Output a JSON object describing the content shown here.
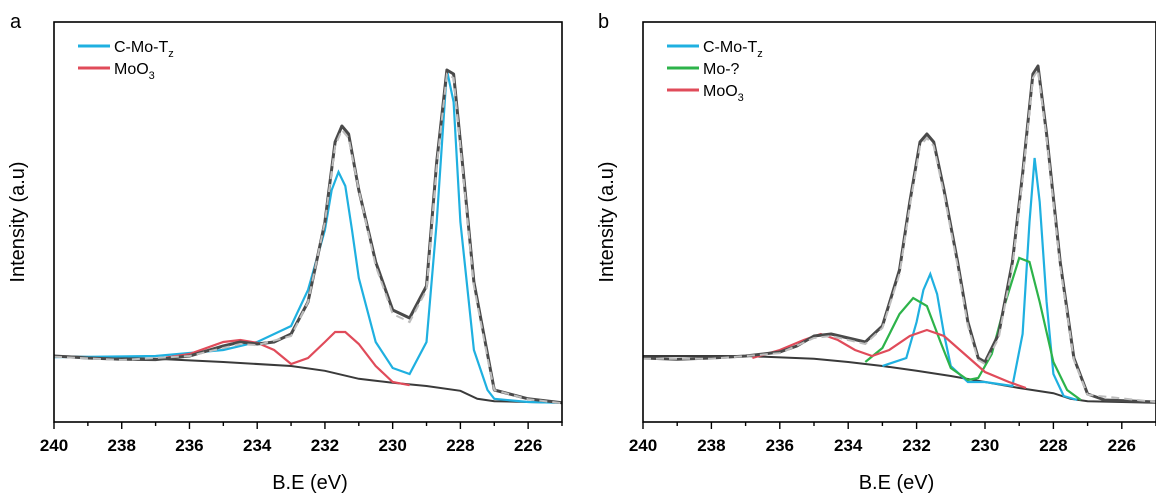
{
  "chart_data": [
    {
      "panel": "a",
      "type": "line",
      "xlabel": "B.E (eV)",
      "ylabel": "Intensity (a.u)",
      "xlim": [
        240,
        225
      ],
      "ylim": [
        0,
        1.0
      ],
      "x_reversed": true,
      "xticks": [
        240,
        238,
        236,
        234,
        232,
        230,
        228,
        226
      ],
      "grid": false,
      "legend": {
        "placement": "top-left",
        "entries": [
          {
            "label": "C-Mo-T",
            "sub": "z",
            "color": "#1fb0e0"
          },
          {
            "label": "MoO",
            "sub": "3",
            "color": "#e04b5a"
          }
        ]
      },
      "measured": {
        "color": "#4a4a4a",
        "points": [
          [
            240,
            0.165
          ],
          [
            239,
            0.16
          ],
          [
            238,
            0.157
          ],
          [
            237,
            0.156
          ],
          [
            236,
            0.165
          ],
          [
            235,
            0.19
          ],
          [
            234.5,
            0.2
          ],
          [
            234,
            0.195
          ],
          [
            233.5,
            0.2
          ],
          [
            233,
            0.22
          ],
          [
            232.5,
            0.3
          ],
          [
            232,
            0.5
          ],
          [
            231.7,
            0.7
          ],
          [
            231.5,
            0.74
          ],
          [
            231.3,
            0.72
          ],
          [
            231,
            0.58
          ],
          [
            230.5,
            0.4
          ],
          [
            230,
            0.28
          ],
          [
            229.5,
            0.26
          ],
          [
            229,
            0.34
          ],
          [
            228.7,
            0.65
          ],
          [
            228.4,
            0.88
          ],
          [
            228.2,
            0.87
          ],
          [
            228,
            0.7
          ],
          [
            227.6,
            0.35
          ],
          [
            227.2,
            0.17
          ],
          [
            227,
            0.08
          ],
          [
            226,
            0.058
          ],
          [
            225,
            0.048
          ]
        ]
      },
      "envelope": {
        "color": "#bdbdbd",
        "points": [
          [
            240,
            0.163
          ],
          [
            238,
            0.155
          ],
          [
            236,
            0.165
          ],
          [
            235,
            0.185
          ],
          [
            234.5,
            0.195
          ],
          [
            234,
            0.192
          ],
          [
            233,
            0.215
          ],
          [
            232.5,
            0.3
          ],
          [
            232,
            0.5
          ],
          [
            231.7,
            0.69
          ],
          [
            231.5,
            0.73
          ],
          [
            231.3,
            0.71
          ],
          [
            231,
            0.58
          ],
          [
            230.5,
            0.39
          ],
          [
            230,
            0.27
          ],
          [
            229.5,
            0.25
          ],
          [
            229,
            0.33
          ],
          [
            228.7,
            0.64
          ],
          [
            228.4,
            0.87
          ],
          [
            228.2,
            0.86
          ],
          [
            228,
            0.69
          ],
          [
            227.6,
            0.34
          ],
          [
            227.2,
            0.16
          ],
          [
            227,
            0.08
          ],
          [
            226,
            0.057
          ],
          [
            225,
            0.047
          ]
        ]
      },
      "background": {
        "color": "#3a3a3a",
        "points": [
          [
            240,
            0.165
          ],
          [
            237,
            0.158
          ],
          [
            235,
            0.15
          ],
          [
            233,
            0.14
          ],
          [
            232,
            0.128
          ],
          [
            231,
            0.108
          ],
          [
            230,
            0.098
          ],
          [
            229,
            0.09
          ],
          [
            228,
            0.078
          ],
          [
            227.5,
            0.058
          ],
          [
            227,
            0.052
          ],
          [
            226,
            0.05
          ],
          [
            225,
            0.048
          ]
        ]
      },
      "components": [
        {
          "name": "C-Mo-T",
          "color": "#1fb0e0",
          "points": [
            [
              240,
              0.162
            ],
            [
              237,
              0.165
            ],
            [
              235,
              0.18
            ],
            [
              234,
              0.2
            ],
            [
              233,
              0.24
            ],
            [
              232.5,
              0.33
            ],
            [
              232,
              0.48
            ],
            [
              231.8,
              0.58
            ],
            [
              231.6,
              0.625
            ],
            [
              231.4,
              0.59
            ],
            [
              231.2,
              0.48
            ],
            [
              231,
              0.36
            ],
            [
              230.5,
              0.2
            ],
            [
              230,
              0.135
            ],
            [
              229.5,
              0.12
            ],
            [
              229,
              0.2
            ],
            [
              228.7,
              0.5
            ],
            [
              228.4,
              0.88
            ],
            [
              228.2,
              0.8
            ],
            [
              228,
              0.5
            ],
            [
              227.6,
              0.18
            ],
            [
              227.2,
              0.08
            ],
            [
              227,
              0.058
            ],
            [
              226,
              0.05
            ],
            [
              225,
              0.048
            ]
          ]
        },
        {
          "name": "MoO",
          "color": "#e04b5a",
          "points": [
            [
              237,
              0.157
            ],
            [
              236,
              0.17
            ],
            [
              235,
              0.2
            ],
            [
              234.5,
              0.205
            ],
            [
              234,
              0.198
            ],
            [
              233.5,
              0.18
            ],
            [
              233,
              0.145
            ],
            [
              232.5,
              0.16
            ],
            [
              232,
              0.2
            ],
            [
              231.7,
              0.225
            ],
            [
              231.4,
              0.225
            ],
            [
              231,
              0.195
            ],
            [
              230.5,
              0.14
            ],
            [
              230,
              0.1
            ],
            [
              229.5,
              0.092
            ]
          ]
        }
      ]
    },
    {
      "panel": "b",
      "type": "line",
      "xlabel": "B.E (eV)",
      "ylabel": "Intensity (a.u)",
      "xlim": [
        240,
        225
      ],
      "ylim": [
        0,
        1.0
      ],
      "x_reversed": true,
      "xticks": [
        240,
        238,
        236,
        234,
        232,
        230,
        228,
        226
      ],
      "grid": false,
      "legend": {
        "placement": "top-left",
        "entries": [
          {
            "label": "C-Mo-T",
            "sub": "z",
            "color": "#1fb0e0"
          },
          {
            "label": "Mo-?",
            "sub": "",
            "color": "#2db34a"
          },
          {
            "label": "MoO",
            "sub": "3",
            "color": "#e04b5a"
          }
        ]
      },
      "measured": {
        "color": "#4a4a4a",
        "points": [
          [
            240,
            0.16
          ],
          [
            239,
            0.157
          ],
          [
            238,
            0.16
          ],
          [
            237,
            0.165
          ],
          [
            236,
            0.175
          ],
          [
            235.5,
            0.19
          ],
          [
            235,
            0.215
          ],
          [
            234.5,
            0.22
          ],
          [
            234,
            0.21
          ],
          [
            233.5,
            0.2
          ],
          [
            233,
            0.24
          ],
          [
            232.5,
            0.38
          ],
          [
            232.2,
            0.55
          ],
          [
            231.9,
            0.7
          ],
          [
            231.7,
            0.72
          ],
          [
            231.5,
            0.7
          ],
          [
            231.2,
            0.58
          ],
          [
            230.8,
            0.4
          ],
          [
            230.5,
            0.25
          ],
          [
            230.2,
            0.16
          ],
          [
            230,
            0.15
          ],
          [
            229.6,
            0.22
          ],
          [
            229.2,
            0.4
          ],
          [
            228.9,
            0.62
          ],
          [
            228.6,
            0.87
          ],
          [
            228.45,
            0.89
          ],
          [
            228.2,
            0.72
          ],
          [
            227.8,
            0.4
          ],
          [
            227.4,
            0.16
          ],
          [
            227,
            0.07
          ],
          [
            226.5,
            0.055
          ],
          [
            225,
            0.05
          ]
        ]
      },
      "envelope": {
        "color": "#bdbdbd",
        "points": [
          [
            240,
            0.158
          ],
          [
            238,
            0.158
          ],
          [
            236,
            0.172
          ],
          [
            235,
            0.21
          ],
          [
            234.5,
            0.215
          ],
          [
            234,
            0.205
          ],
          [
            233.5,
            0.195
          ],
          [
            233,
            0.235
          ],
          [
            232.5,
            0.37
          ],
          [
            232.2,
            0.54
          ],
          [
            231.9,
            0.69
          ],
          [
            231.7,
            0.71
          ],
          [
            231.5,
            0.69
          ],
          [
            231.2,
            0.57
          ],
          [
            230.8,
            0.39
          ],
          [
            230.5,
            0.24
          ],
          [
            230.2,
            0.155
          ],
          [
            230,
            0.145
          ],
          [
            229.6,
            0.21
          ],
          [
            229.2,
            0.39
          ],
          [
            228.9,
            0.61
          ],
          [
            228.6,
            0.86
          ],
          [
            228.45,
            0.88
          ],
          [
            228.2,
            0.71
          ],
          [
            227.8,
            0.39
          ],
          [
            227.4,
            0.155
          ],
          [
            227,
            0.068
          ],
          [
            225,
            0.05
          ]
        ]
      },
      "background": {
        "color": "#3a3a3a",
        "points": [
          [
            240,
            0.165
          ],
          [
            237,
            0.165
          ],
          [
            235,
            0.158
          ],
          [
            234,
            0.15
          ],
          [
            233,
            0.14
          ],
          [
            232,
            0.128
          ],
          [
            231,
            0.115
          ],
          [
            230,
            0.1
          ],
          [
            229,
            0.085
          ],
          [
            228,
            0.072
          ],
          [
            227.5,
            0.058
          ],
          [
            227,
            0.052
          ],
          [
            226,
            0.05
          ],
          [
            225,
            0.048
          ]
        ]
      },
      "components": [
        {
          "name": "C-Mo-T",
          "color": "#1fb0e0",
          "points": [
            [
              233,
              0.14
            ],
            [
              232.3,
              0.16
            ],
            [
              232,
              0.25
            ],
            [
              231.8,
              0.33
            ],
            [
              231.6,
              0.37
            ],
            [
              231.4,
              0.32
            ],
            [
              231.2,
              0.22
            ],
            [
              231,
              0.14
            ],
            [
              230.5,
              0.1
            ],
            [
              230,
              0.1
            ],
            [
              229.2,
              0.09
            ],
            [
              228.9,
              0.22
            ],
            [
              228.7,
              0.5
            ],
            [
              228.55,
              0.66
            ],
            [
              228.4,
              0.55
            ],
            [
              228.2,
              0.3
            ],
            [
              228,
              0.12
            ],
            [
              227.7,
              0.065
            ],
            [
              227.3,
              0.055
            ]
          ]
        },
        {
          "name": "Mo-?",
          "color": "#2db34a",
          "points": [
            [
              233.5,
              0.15
            ],
            [
              233,
              0.185
            ],
            [
              232.5,
              0.27
            ],
            [
              232.1,
              0.31
            ],
            [
              231.7,
              0.29
            ],
            [
              231.3,
              0.2
            ],
            [
              231,
              0.135
            ],
            [
              230.5,
              0.105
            ],
            [
              230.2,
              0.11
            ],
            [
              229.8,
              0.17
            ],
            [
              229.4,
              0.3
            ],
            [
              229,
              0.41
            ],
            [
              228.7,
              0.4
            ],
            [
              228.4,
              0.3
            ],
            [
              228,
              0.15
            ],
            [
              227.6,
              0.08
            ],
            [
              227.2,
              0.055
            ]
          ]
        },
        {
          "name": "MoO",
          "color": "#e04b5a",
          "points": [
            [
              236.8,
              0.16
            ],
            [
              236,
              0.18
            ],
            [
              235.3,
              0.205
            ],
            [
              234.8,
              0.22
            ],
            [
              234.3,
              0.205
            ],
            [
              233.8,
              0.18
            ],
            [
              233.3,
              0.165
            ],
            [
              232.8,
              0.18
            ],
            [
              232.2,
              0.215
            ],
            [
              231.7,
              0.23
            ],
            [
              231.2,
              0.215
            ],
            [
              230.6,
              0.17
            ],
            [
              230,
              0.125
            ],
            [
              229.3,
              0.1
            ],
            [
              228.8,
              0.085
            ]
          ]
        }
      ]
    }
  ]
}
